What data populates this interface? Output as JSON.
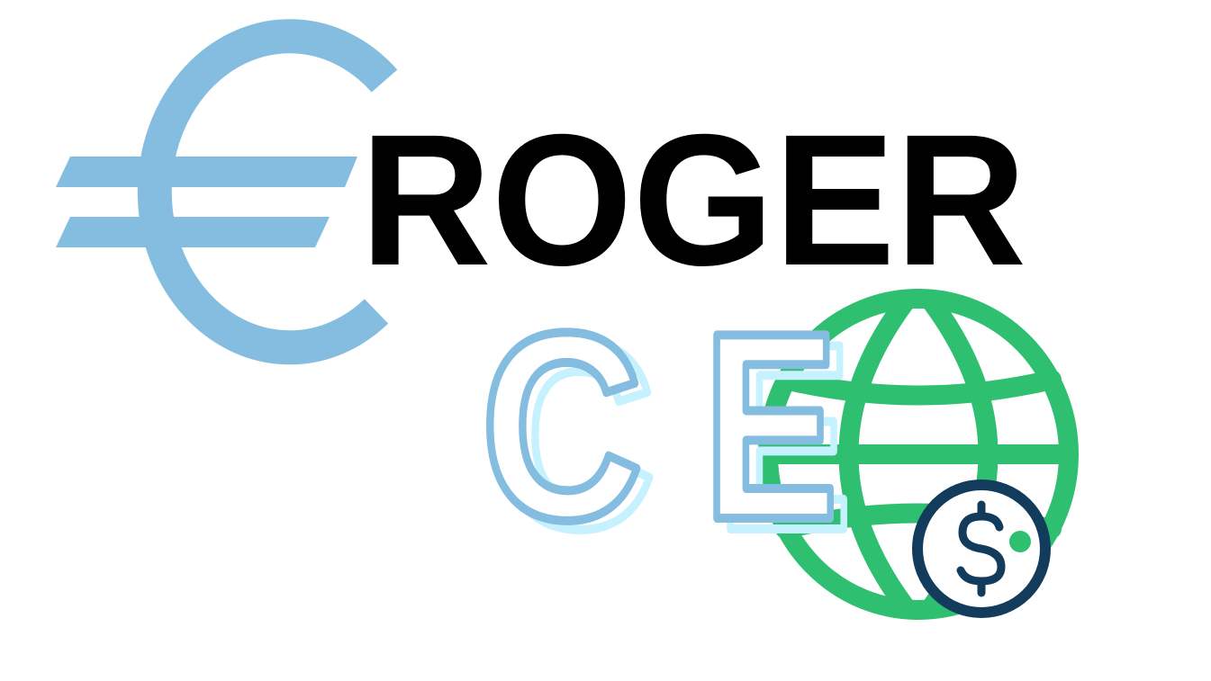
{
  "logo": {
    "wordmark": "ROGER",
    "initial_c": "C",
    "initial_e": "E",
    "icons": {
      "currency": "euro-icon",
      "globe": "globe-icon",
      "dollar": "dollar-coin-icon"
    },
    "colors": {
      "background": "#ffffff",
      "euro_blue": "#85bde0",
      "pale_cyan": "#c6f1ff",
      "wordmark_black": "#000000",
      "globe_green": "#2fbf71",
      "coin_navy": "#123b5c"
    }
  }
}
